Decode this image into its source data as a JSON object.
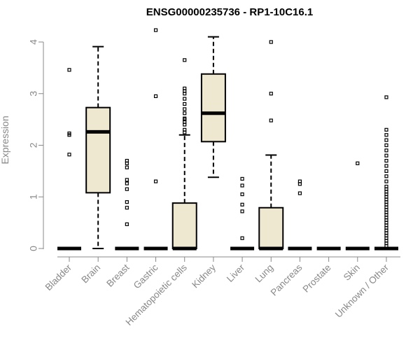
{
  "chart_data": {
    "type": "boxplot",
    "title": "ENSG00000235736 - RP1-10C16.1",
    "xlabel": "",
    "ylabel": "Expression",
    "ylim": [
      0,
      4.2
    ],
    "yticks": [
      0,
      1,
      2,
      3,
      4
    ],
    "grid": false,
    "box_fill": "#efe8d0",
    "categories": [
      "Bladder",
      "Brain",
      "Breast",
      "Gastric",
      "Hematopoietic cells",
      "Kidney",
      "Liver",
      "Lung",
      "Pancreas",
      "Prostate",
      "Skin",
      "Unknown / Other"
    ],
    "boxes": [
      {
        "category": "Bladder",
        "q1": 0,
        "median": 0,
        "q3": 0,
        "whisker_low": 0,
        "whisker_high": 0,
        "outliers": [
          1.82,
          2.2,
          2.23,
          3.46
        ]
      },
      {
        "category": "Brain",
        "q1": 1.08,
        "median": 2.26,
        "q3": 2.73,
        "whisker_low": 0,
        "whisker_high": 3.91,
        "outliers": []
      },
      {
        "category": "Breast",
        "q1": 0,
        "median": 0,
        "q3": 0,
        "whisker_low": 0,
        "whisker_high": 0,
        "outliers": [
          0.47,
          0.79,
          0.9,
          1.15,
          1.26,
          1.33,
          1.57,
          1.65,
          1.7
        ]
      },
      {
        "category": "Gastric",
        "q1": 0,
        "median": 0,
        "q3": 0,
        "whisker_low": 0,
        "whisker_high": 0,
        "outliers": [
          1.3,
          2.95,
          4.23
        ]
      },
      {
        "category": "Hematopoietic cells",
        "q1": 0,
        "median": 0,
        "q3": 0.88,
        "whisker_low": 0,
        "whisker_high": 2.2,
        "outliers": [
          2.25,
          2.3,
          2.4,
          2.45,
          2.5,
          2.52,
          2.62,
          2.7,
          2.8,
          2.9,
          3.0,
          3.05,
          3.1,
          3.65
        ]
      },
      {
        "category": "Kidney",
        "q1": 2.07,
        "median": 2.62,
        "q3": 3.38,
        "whisker_low": 1.38,
        "whisker_high": 4.1,
        "outliers": []
      },
      {
        "category": "Liver",
        "q1": 0,
        "median": 0,
        "q3": 0,
        "whisker_low": 0,
        "whisker_high": 0,
        "outliers": [
          0.2,
          0.72,
          0.85,
          1.05,
          1.22,
          1.35
        ]
      },
      {
        "category": "Lung",
        "q1": 0,
        "median": 0,
        "q3": 0.79,
        "whisker_low": 0,
        "whisker_high": 1.81,
        "outliers": [
          2.48,
          3.0,
          4.0
        ]
      },
      {
        "category": "Pancreas",
        "q1": 0,
        "median": 0,
        "q3": 0,
        "whisker_low": 0,
        "whisker_high": 0,
        "outliers": [
          1.07,
          1.25,
          1.3
        ]
      },
      {
        "category": "Prostate",
        "q1": 0,
        "median": 0,
        "q3": 0,
        "whisker_low": 0,
        "whisker_high": 0,
        "outliers": []
      },
      {
        "category": "Skin",
        "q1": 0,
        "median": 0,
        "q3": 0,
        "whisker_low": 0,
        "whisker_high": 0,
        "outliers": [
          1.65
        ]
      },
      {
        "category": "Unknown / Other",
        "q1": 0,
        "median": 0,
        "q3": 0,
        "whisker_low": 0,
        "whisker_high": 0,
        "outliers": [
          0.05,
          0.1,
          0.15,
          0.2,
          0.25,
          0.3,
          0.35,
          0.4,
          0.45,
          0.5,
          0.55,
          0.6,
          0.65,
          0.7,
          0.75,
          0.8,
          0.85,
          0.9,
          0.95,
          1.0,
          1.05,
          1.1,
          1.15,
          1.2,
          1.3,
          1.4,
          1.5,
          1.6,
          1.7,
          1.8,
          1.9,
          2.0,
          2.1,
          2.2,
          2.3,
          2.93
        ]
      }
    ]
  }
}
